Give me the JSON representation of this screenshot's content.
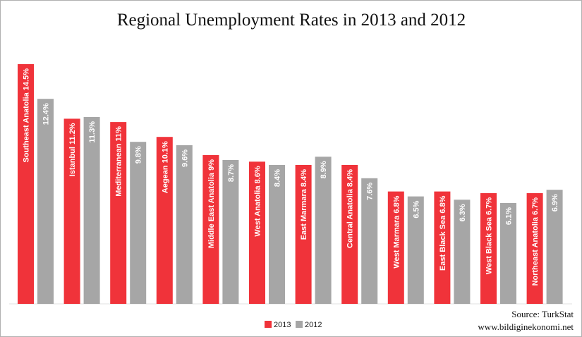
{
  "chart_data": {
    "type": "bar",
    "title": "Regional Unemployment Rates in 2013 and 2012",
    "categories": [
      "Southeast Anatolia",
      "Istanbul",
      "Mediterranean",
      "Aegean",
      "Middle East Anatolia",
      "West Anatolia",
      "East Marmara",
      "Central Anatolia",
      "West Marmara",
      "East Black Sea",
      "West Black Sea",
      "Northeast Anatolia"
    ],
    "series": [
      {
        "name": "2013",
        "color": "#f0333a",
        "values": [
          14.5,
          11.2,
          11,
          10.1,
          9,
          8.6,
          8.4,
          8.4,
          6.8,
          6.8,
          6.7,
          6.7
        ],
        "labels": [
          "Southeast Anatolia 14.5%",
          "Istanbul 11.2%",
          "Mediterranean 11%",
          "Aegean 10.1%",
          "Middle East Anatolia 9%",
          "West Anatolia 8.6%",
          "East Marmara 8.4%",
          "Central Anatolia 8.4%",
          "West Marmara 6.8%",
          "East Black Sea 6.8%",
          "West Black Sea 6.7%",
          "Northeast Anatolia 6.7%"
        ]
      },
      {
        "name": "2012",
        "color": "#a6a6a6",
        "values": [
          12.4,
          11.3,
          9.8,
          9.6,
          8.7,
          8.4,
          8.9,
          7.6,
          6.5,
          6.3,
          6.1,
          6.9
        ],
        "labels": [
          "12.4%",
          "11.3%",
          "9.8%",
          "9.6%",
          "8.7%",
          "8.4%",
          "8.9%",
          "7.6%",
          "6.5%",
          "6.3%",
          "6.1%",
          "6.9%"
        ]
      }
    ],
    "ylim": [
      0,
      14.5
    ],
    "grid": false,
    "legend_position": "bottom-center"
  },
  "source_text": "Source: TurkStat",
  "website_text": "www.bildiginekonomi.net"
}
